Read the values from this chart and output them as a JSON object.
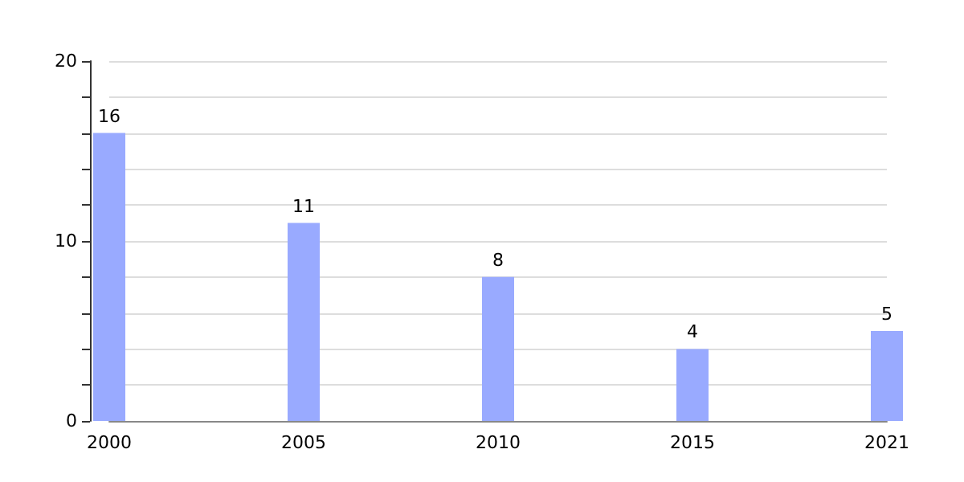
{
  "chart_data": {
    "type": "bar",
    "categories": [
      "2000",
      "2005",
      "2010",
      "2015",
      "2021"
    ],
    "values": [
      16,
      11,
      8,
      4,
      5
    ],
    "color": "#99aaff",
    "data_labels": true,
    "ylim": [
      0,
      20
    ],
    "yticks": [
      0,
      {
        "value": 2,
        "label": null
      },
      {
        "value": 4,
        "label": null
      },
      {
        "value": 6,
        "label": null
      },
      {
        "value": 8,
        "label": null
      },
      10,
      {
        "value": 12,
        "label": null
      },
      {
        "value": 14,
        "label": null
      },
      {
        "value": 16,
        "label": null
      },
      {
        "value": 18,
        "label": null
      },
      20
    ],
    "grid": true
  }
}
